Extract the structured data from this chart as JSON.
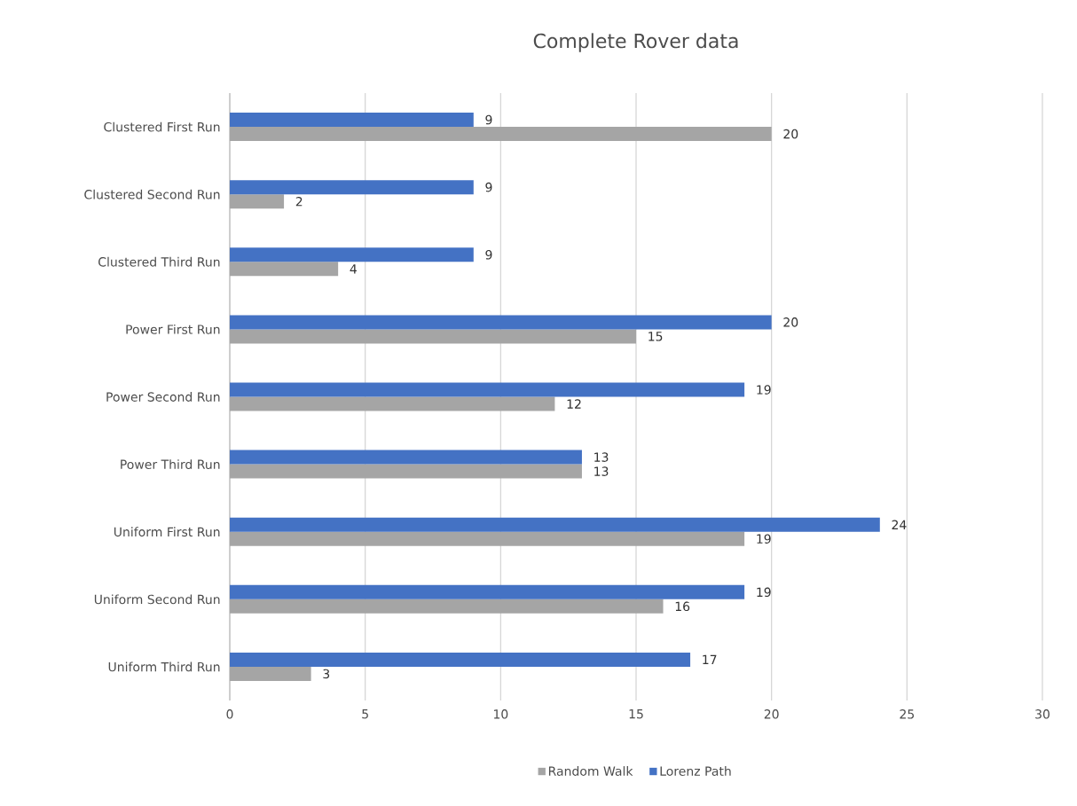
{
  "chart_data": {
    "type": "bar",
    "orientation": "horizontal",
    "title": "Complete Rover data",
    "categories": [
      "Clustered First Run",
      "Clustered Second Run",
      "Clustered Third Run",
      "Power First Run",
      "Power Second Run",
      "Power Third Run",
      "Uniform First Run",
      "Uniform Second Run",
      "Uniform Third Run"
    ],
    "series": [
      {
        "name": "Random Walk",
        "color": "#a5a5a5",
        "values": [
          20,
          2,
          4,
          15,
          12,
          13,
          19,
          16,
          3
        ]
      },
      {
        "name": "Lorenz Path",
        "color": "#4472c4",
        "values": [
          9,
          9,
          9,
          20,
          19,
          13,
          24,
          19,
          17
        ]
      }
    ],
    "xlim": [
      0,
      30
    ],
    "xticks": [
      0,
      5,
      10,
      15,
      20,
      25,
      30
    ],
    "grid": "x",
    "legend": "bottom",
    "data_labels": true
  }
}
